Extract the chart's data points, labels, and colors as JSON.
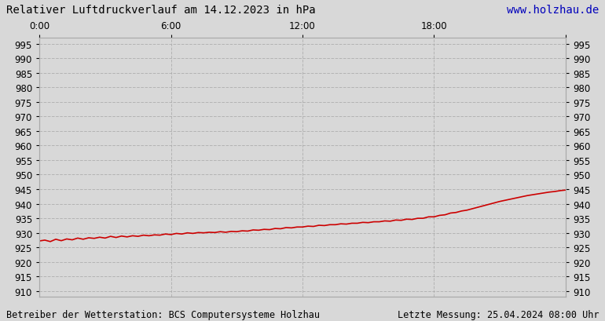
{
  "title": "Relativer Luftdruckverlauf am 14.12.2023 in hPa",
  "url_text": "www.holzhau.de",
  "url_color": "#0000bb",
  "footer_left": "Betreiber der Wetterstation: BCS Computersysteme Holzhau",
  "footer_right": "Letzte Messung: 25.04.2024 08:00 Uhr",
  "background_color": "#d8d8d8",
  "plot_background": "#d8d8d8",
  "line_color": "#cc0000",
  "line_width": 1.2,
  "ylim": [
    908,
    997
  ],
  "yticks": [
    910,
    915,
    920,
    925,
    930,
    935,
    940,
    945,
    950,
    955,
    960,
    965,
    970,
    975,
    980,
    985,
    990,
    995
  ],
  "xtick_positions": [
    0,
    6,
    12,
    18,
    24
  ],
  "xtick_labels": [
    "0:00",
    "6:00",
    "12:00",
    "18:00",
    ""
  ],
  "xlim": [
    0,
    24
  ],
  "grid_color": "#aaaaaa",
  "grid_style": "--",
  "grid_alpha": 0.8,
  "pressure_data": [
    [
      0.0,
      927.2
    ],
    [
      0.25,
      927.5
    ],
    [
      0.5,
      927.0
    ],
    [
      0.75,
      927.8
    ],
    [
      1.0,
      927.3
    ],
    [
      1.25,
      927.9
    ],
    [
      1.5,
      927.6
    ],
    [
      1.75,
      928.2
    ],
    [
      2.0,
      927.8
    ],
    [
      2.25,
      928.3
    ],
    [
      2.5,
      928.1
    ],
    [
      2.75,
      928.5
    ],
    [
      3.0,
      928.2
    ],
    [
      3.25,
      928.8
    ],
    [
      3.5,
      928.4
    ],
    [
      3.75,
      928.9
    ],
    [
      4.0,
      928.6
    ],
    [
      4.25,
      929.0
    ],
    [
      4.5,
      928.8
    ],
    [
      4.75,
      929.2
    ],
    [
      5.0,
      929.0
    ],
    [
      5.25,
      929.3
    ],
    [
      5.5,
      929.2
    ],
    [
      5.75,
      929.6
    ],
    [
      6.0,
      929.4
    ],
    [
      6.25,
      929.8
    ],
    [
      6.5,
      929.6
    ],
    [
      6.75,
      930.0
    ],
    [
      7.0,
      929.8
    ],
    [
      7.25,
      930.1
    ],
    [
      7.5,
      930.0
    ],
    [
      7.75,
      930.2
    ],
    [
      8.0,
      930.1
    ],
    [
      8.25,
      930.4
    ],
    [
      8.5,
      930.2
    ],
    [
      8.75,
      930.5
    ],
    [
      9.0,
      930.4
    ],
    [
      9.25,
      930.7
    ],
    [
      9.5,
      930.6
    ],
    [
      9.75,
      931.0
    ],
    [
      10.0,
      930.9
    ],
    [
      10.25,
      931.2
    ],
    [
      10.5,
      931.1
    ],
    [
      10.75,
      931.5
    ],
    [
      11.0,
      931.4
    ],
    [
      11.25,
      931.8
    ],
    [
      11.5,
      931.7
    ],
    [
      11.75,
      932.0
    ],
    [
      12.0,
      932.0
    ],
    [
      12.25,
      932.3
    ],
    [
      12.5,
      932.2
    ],
    [
      12.75,
      932.6
    ],
    [
      13.0,
      932.5
    ],
    [
      13.25,
      932.8
    ],
    [
      13.5,
      932.8
    ],
    [
      13.75,
      933.1
    ],
    [
      14.0,
      933.0
    ],
    [
      14.25,
      933.3
    ],
    [
      14.5,
      933.3
    ],
    [
      14.75,
      933.6
    ],
    [
      15.0,
      933.5
    ],
    [
      15.25,
      933.8
    ],
    [
      15.5,
      933.8
    ],
    [
      15.75,
      934.1
    ],
    [
      16.0,
      934.0
    ],
    [
      16.25,
      934.4
    ],
    [
      16.5,
      934.3
    ],
    [
      16.75,
      934.7
    ],
    [
      17.0,
      934.6
    ],
    [
      17.25,
      935.0
    ],
    [
      17.5,
      935.0
    ],
    [
      17.75,
      935.5
    ],
    [
      18.0,
      935.5
    ],
    [
      18.25,
      936.0
    ],
    [
      18.5,
      936.2
    ],
    [
      18.75,
      936.8
    ],
    [
      19.0,
      937.0
    ],
    [
      19.25,
      937.5
    ],
    [
      19.5,
      937.8
    ],
    [
      19.75,
      938.3
    ],
    [
      20.0,
      938.8
    ],
    [
      20.25,
      939.3
    ],
    [
      20.5,
      939.8
    ],
    [
      20.75,
      940.3
    ],
    [
      21.0,
      940.8
    ],
    [
      21.25,
      941.2
    ],
    [
      21.5,
      941.6
    ],
    [
      21.75,
      942.0
    ],
    [
      22.0,
      942.4
    ],
    [
      22.25,
      942.8
    ],
    [
      22.5,
      943.1
    ],
    [
      22.75,
      943.4
    ],
    [
      23.0,
      943.7
    ],
    [
      23.25,
      944.0
    ],
    [
      23.5,
      944.2
    ],
    [
      23.75,
      944.5
    ],
    [
      24.0,
      944.7
    ]
  ],
  "title_fontsize": 10,
  "tick_fontsize": 8.5,
  "footer_fontsize": 8.5
}
